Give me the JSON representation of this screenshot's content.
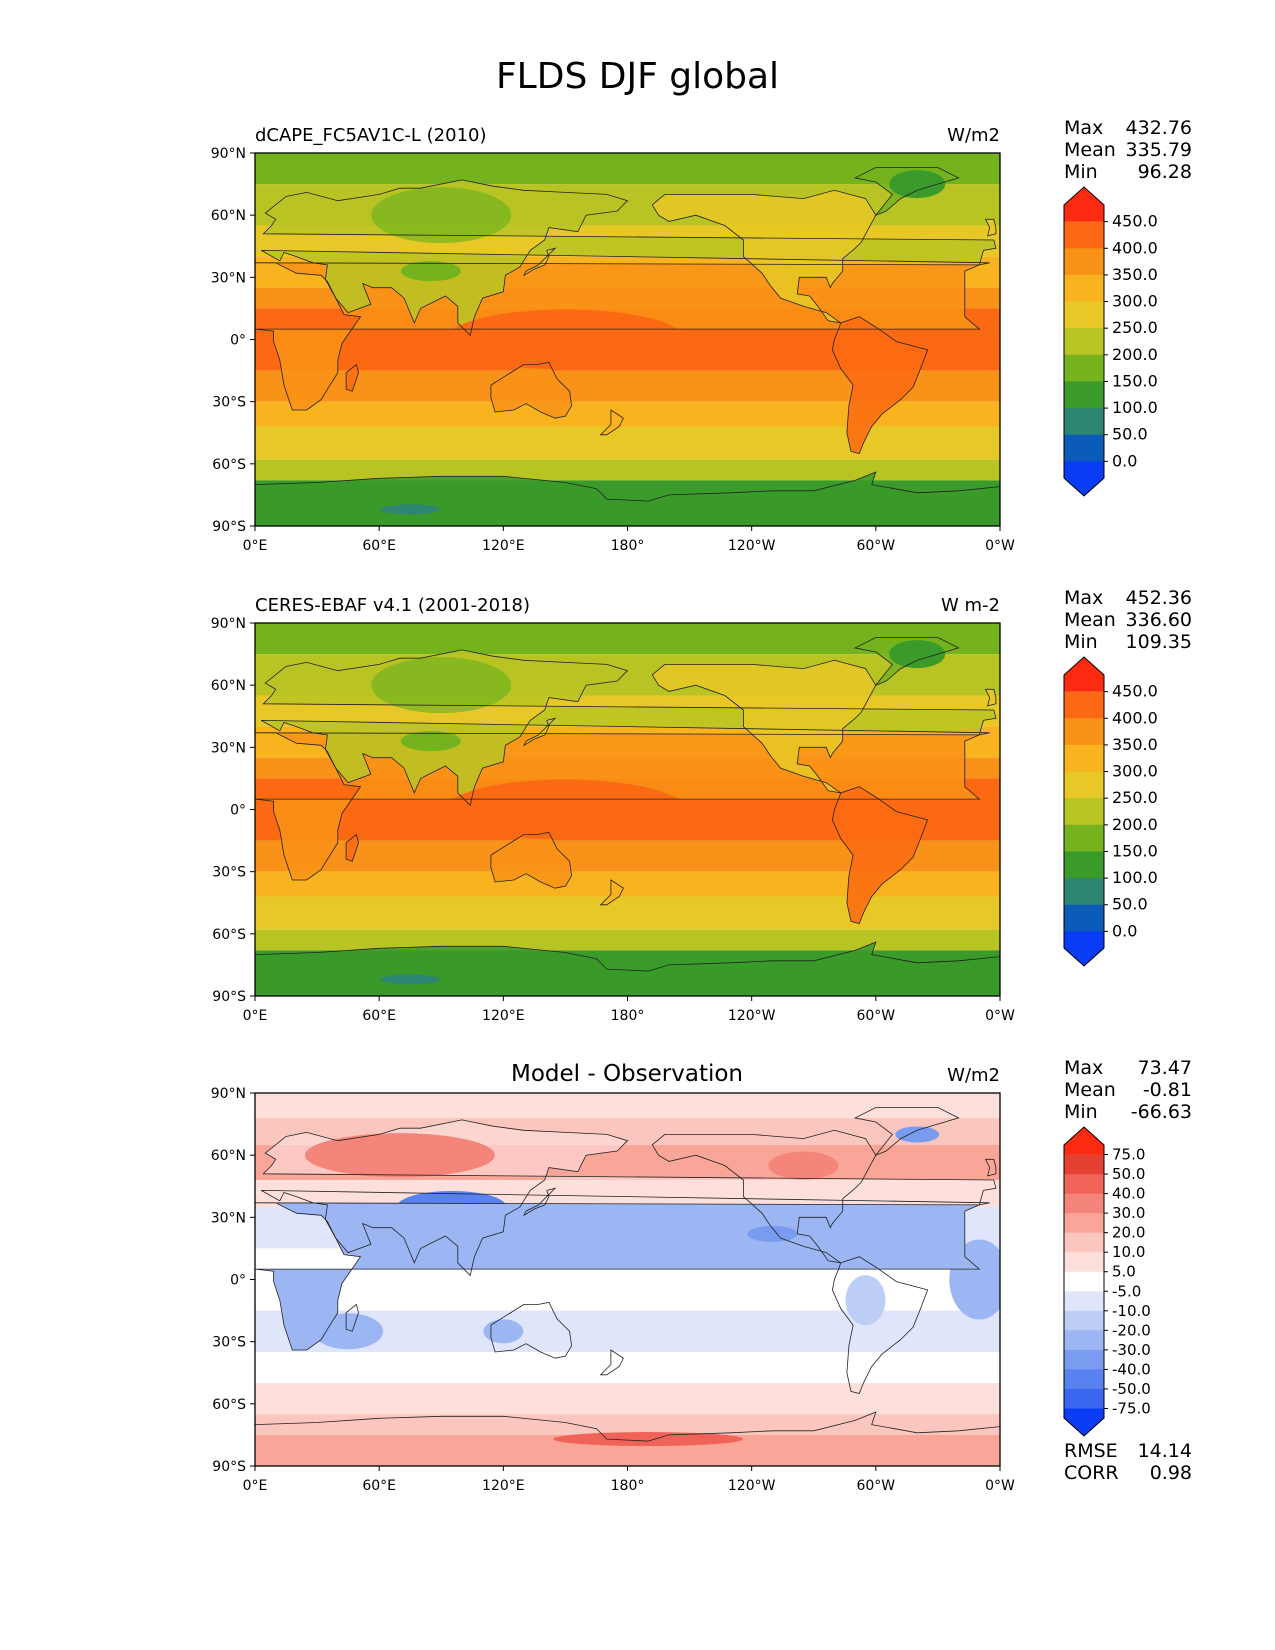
{
  "figure_title": "FLDS DJF global",
  "axis_ticks": {
    "lat": [
      "90°N",
      "60°N",
      "30°N",
      "0°",
      "30°S",
      "60°S",
      "90°S"
    ],
    "lon": [
      "0°E",
      "60°E",
      "120°E",
      "180°",
      "120°W",
      "60°W",
      "0°W"
    ]
  },
  "panels": [
    {
      "left_title": "dCAPE_FC5AV1C-L (2010)",
      "center_title": "",
      "units": "W/m2",
      "stats": {
        "max_label": "Max",
        "max": "432.76",
        "mean_label": "Mean",
        "mean": "335.79",
        "min_label": "Min",
        "min": "96.28"
      },
      "colorbar": {
        "type": "absolute",
        "levels": [
          "450.0",
          "400.0",
          "350.0",
          "300.0",
          "250.0",
          "200.0",
          "150.0",
          "100.0",
          "50.0",
          "0.0"
        ]
      }
    },
    {
      "left_title": "CERES-EBAF v4.1 (2001-2018)",
      "center_title": "",
      "units": "W m-2",
      "stats": {
        "max_label": "Max",
        "max": "452.36",
        "mean_label": "Mean",
        "mean": "336.60",
        "min_label": "Min",
        "min": "109.35"
      },
      "colorbar": {
        "type": "absolute",
        "levels": [
          "450.0",
          "400.0",
          "350.0",
          "300.0",
          "250.0",
          "200.0",
          "150.0",
          "100.0",
          "50.0",
          "0.0"
        ]
      }
    },
    {
      "left_title": "",
      "center_title": "Model - Observation",
      "units": "W/m2",
      "stats": {
        "max_label": "Max",
        "max": "73.47",
        "mean_label": "Mean",
        "mean": "-0.81",
        "min_label": "Min",
        "min": "-66.63"
      },
      "colorbar": {
        "type": "diff",
        "levels": [
          "75.0",
          "50.0",
          "40.0",
          "30.0",
          "20.0",
          "10.0",
          "5.0",
          "-5.0",
          "-10.0",
          "-20.0",
          "-30.0",
          "-40.0",
          "-50.0",
          "-75.0"
        ]
      },
      "footer": {
        "rmse_label": "RMSE",
        "rmse": "14.14",
        "corr_label": "CORR",
        "corr": "0.98"
      }
    }
  ],
  "colors": {
    "abs_scale": [
      "#0a3cf5",
      "#0a5cb8",
      "#2e8572",
      "#3a9a2a",
      "#74b31e",
      "#b8c424",
      "#e8c826",
      "#f8b31e",
      "#f99218",
      "#fb6a12",
      "#fc2a10"
    ],
    "diff_scale": [
      "#0a3cf5",
      "#3a66f2",
      "#5882f0",
      "#7a9cf0",
      "#9cb6f4",
      "#bccdf6",
      "#dfe6fb",
      "#ffffff",
      "#fde0dc",
      "#fbc6bd",
      "#f9a699",
      "#f5857a",
      "#ef6358",
      "#e54032",
      "#fc2a10"
    ]
  }
}
